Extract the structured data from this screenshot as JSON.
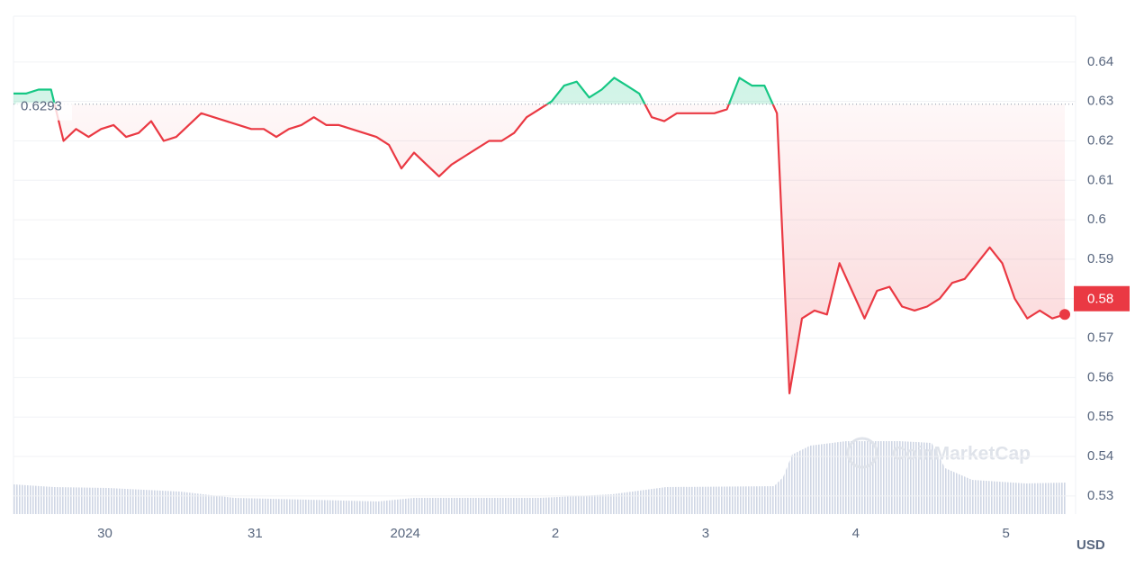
{
  "chart_data": {
    "type": "line",
    "series": [
      {
        "name": "Price",
        "color": "#ea3943",
        "up_color": "#16c784",
        "values": [
          0.632,
          0.632,
          0.633,
          0.633,
          0.62,
          0.623,
          0.621,
          0.623,
          0.624,
          0.621,
          0.622,
          0.625,
          0.62,
          0.621,
          0.624,
          0.627,
          0.626,
          0.625,
          0.624,
          0.623,
          0.623,
          0.621,
          0.623,
          0.624,
          0.626,
          0.624,
          0.624,
          0.623,
          0.622,
          0.621,
          0.619,
          0.613,
          0.617,
          0.614,
          0.611,
          0.614,
          0.616,
          0.618,
          0.62,
          0.62,
          0.622,
          0.626,
          0.628,
          0.63,
          0.634,
          0.635,
          0.631,
          0.633,
          0.636,
          0.634,
          0.632,
          0.626,
          0.625,
          0.627,
          0.627,
          0.627,
          0.627,
          0.628,
          0.636,
          0.634,
          0.634,
          0.627,
          0.556,
          0.575,
          0.577,
          0.576,
          0.589,
          0.582,
          0.575,
          0.582,
          0.583,
          0.578,
          0.577,
          0.578,
          0.58,
          0.584,
          0.585,
          0.589,
          0.593,
          0.589,
          0.58,
          0.575,
          0.577,
          0.575,
          0.576
        ]
      }
    ],
    "xlim": [
      0,
      84
    ],
    "xticks": [
      {
        "value": 7.3,
        "label": "30"
      },
      {
        "value": 19.3,
        "label": "31"
      },
      {
        "value": 31.3,
        "label": "2024"
      },
      {
        "value": 43.3,
        "label": "2"
      },
      {
        "value": 55.3,
        "label": "3"
      },
      {
        "value": 67.3,
        "label": "4"
      },
      {
        "value": 79.3,
        "label": "5"
      }
    ],
    "ylim": [
      0.5254,
      0.6516
    ],
    "yticks": [
      0.53,
      0.54,
      0.55,
      0.56,
      0.57,
      0.58,
      0.59,
      0.6,
      0.61,
      0.62,
      0.63,
      0.64
    ],
    "reference": 0.6293,
    "current_price": 0.58,
    "y_unit": "USD",
    "watermark": "CoinMarketCap",
    "grid": true
  }
}
